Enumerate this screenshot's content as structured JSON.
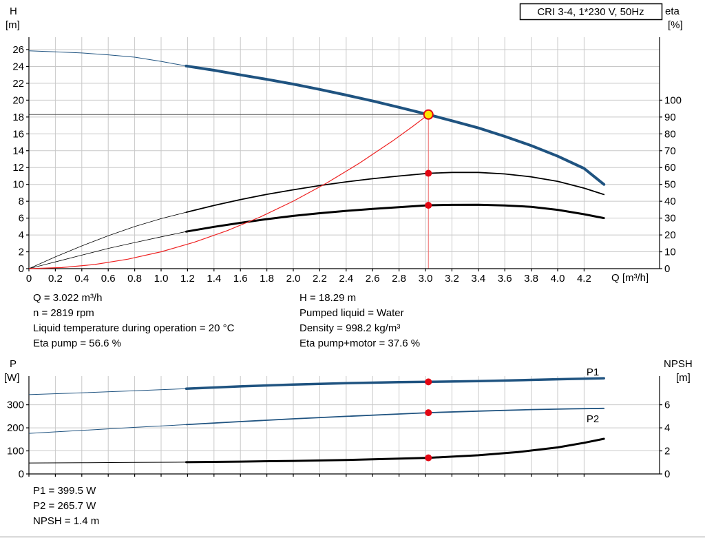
{
  "header": {
    "model": "CRI 3-4, 1*230 V, 50Hz"
  },
  "axis_labels": {
    "h_name": "H",
    "h_unit": "[m]",
    "eta_name": "eta",
    "eta_unit": "[%]",
    "q_label": "Q [m³/h]",
    "p_name": "P",
    "p_unit": "[W]",
    "npsh_name": "NPSH",
    "npsh_unit": "[m]"
  },
  "operating_data": {
    "left_column": [
      "Q = 3.022 m³/h",
      "n = 2819 rpm",
      "Liquid temperature during operation = 20 °C",
      "Eta pump = 56.6 %"
    ],
    "right_column": [
      "H = 18.29 m",
      "Pumped liquid = Water",
      "Density = 998.2 kg/m³",
      "Eta pump+motor = 37.6 %"
    ]
  },
  "power_data": [
    "P1 = 399.5 W",
    "P2 = 265.7 W",
    "NPSH = 1.4 m"
  ],
  "colors": {
    "curve_blue": "#1f5380",
    "curve_black": "#000000",
    "curve_red": "#ee2222",
    "dot_red": "#e30613",
    "duty_fill": "#ffe500",
    "grid": "#c8c8c8",
    "guide_gray": "#555555",
    "guide_red": "#ee6666"
  },
  "chart_data": [
    {
      "type": "line",
      "title": "CRI 3-4, 1*230 V, 50Hz",
      "x_axis": {
        "label": "Q [m³/h]",
        "min": 0,
        "max": 4.77,
        "tick_step": 0.2,
        "tick_max": 4.2,
        "show_labels": true
      },
      "y_left_axis": {
        "name": "H",
        "unit": "[m]",
        "min": 0,
        "tick_step": 2,
        "tick_max": 26
      },
      "y_right_axis": {
        "name": "eta",
        "unit": "[%]",
        "min": 0,
        "tick_step": 10,
        "tick_max": 100
      },
      "duty_point": {
        "q": 3.022,
        "h": 18.29,
        "eta_pump": 56.6,
        "eta_pump_motor": 37.6
      },
      "guides": {
        "horizontal_at": 18.29,
        "vertical_at": 3.022
      },
      "series": [
        {
          "name": "pump-head-curve",
          "axis": "left",
          "color_key": "curve_blue",
          "width": 4,
          "thin_width": 1,
          "thin_until": 1.19,
          "points": [
            [
              0,
              25.85
            ],
            [
              0.2,
              25.74
            ],
            [
              0.4,
              25.6
            ],
            [
              0.6,
              25.38
            ],
            [
              0.8,
              25.1
            ],
            [
              1.0,
              24.6
            ],
            [
              1.19,
              24.05
            ],
            [
              1.4,
              23.55
            ],
            [
              1.6,
              23.0
            ],
            [
              1.8,
              22.47
            ],
            [
              2.0,
              21.9
            ],
            [
              2.2,
              21.27
            ],
            [
              2.4,
              20.6
            ],
            [
              2.6,
              19.9
            ],
            [
              2.8,
              19.15
            ],
            [
              3.0,
              18.37
            ],
            [
              3.022,
              18.29
            ],
            [
              3.2,
              17.55
            ],
            [
              3.4,
              16.7
            ],
            [
              3.6,
              15.7
            ],
            [
              3.8,
              14.6
            ],
            [
              4.0,
              13.35
            ],
            [
              4.2,
              11.9
            ],
            [
              4.35,
              10.0
            ]
          ]
        },
        {
          "name": "eta-pump-curve",
          "axis": "right",
          "color_key": "curve_black",
          "width": 1.8,
          "thin_width": 0.8,
          "thin_until": 1.19,
          "points": [
            [
              0,
              0
            ],
            [
              0.2,
              7
            ],
            [
              0.4,
              13.5
            ],
            [
              0.6,
              19.5
            ],
            [
              0.8,
              25
            ],
            [
              1.0,
              29.7
            ],
            [
              1.19,
              33.5
            ],
            [
              1.4,
              37.5
            ],
            [
              1.6,
              41
            ],
            [
              1.8,
              44.1
            ],
            [
              2.0,
              46.8
            ],
            [
              2.2,
              49.3
            ],
            [
              2.4,
              51.5
            ],
            [
              2.6,
              53.4
            ],
            [
              2.8,
              55
            ],
            [
              3.0,
              56.4
            ],
            [
              3.022,
              56.6
            ],
            [
              3.2,
              57.1
            ],
            [
              3.4,
              57.1
            ],
            [
              3.6,
              56.2
            ],
            [
              3.8,
              54.5
            ],
            [
              4.0,
              51.8
            ],
            [
              4.2,
              47.8
            ],
            [
              4.35,
              44.0
            ]
          ]
        },
        {
          "name": "eta-pump-motor-curve",
          "axis": "right",
          "color_key": "curve_black",
          "width": 3,
          "thin_width": 0.8,
          "thin_until": 1.19,
          "points": [
            [
              0,
              0
            ],
            [
              0.2,
              4
            ],
            [
              0.4,
              8
            ],
            [
              0.6,
              12
            ],
            [
              0.8,
              15.5
            ],
            [
              1.0,
              18.9
            ],
            [
              1.19,
              22
            ],
            [
              1.4,
              24.8
            ],
            [
              1.6,
              27.2
            ],
            [
              1.8,
              29.4
            ],
            [
              2.0,
              31.3
            ],
            [
              2.2,
              32.9
            ],
            [
              2.4,
              34.3
            ],
            [
              2.6,
              35.5
            ],
            [
              2.8,
              36.5
            ],
            [
              3.0,
              37.5
            ],
            [
              3.022,
              37.6
            ],
            [
              3.2,
              37.85
            ],
            [
              3.4,
              37.9
            ],
            [
              3.6,
              37.5
            ],
            [
              3.8,
              36.7
            ],
            [
              4.0,
              34.9
            ],
            [
              4.2,
              32.3
            ],
            [
              4.35,
              30.0
            ]
          ]
        },
        {
          "name": "system-curve",
          "axis": "left",
          "color_key": "curve_red",
          "width": 1.2,
          "points": [
            [
              0,
              0
            ],
            [
              0.25,
              0.13
            ],
            [
              0.5,
              0.5
            ],
            [
              0.75,
              1.13
            ],
            [
              1.0,
              2.0
            ],
            [
              1.25,
              3.13
            ],
            [
              1.5,
              4.51
            ],
            [
              1.75,
              6.13
            ],
            [
              2.0,
              8.01
            ],
            [
              2.25,
              10.14
            ],
            [
              2.5,
              12.52
            ],
            [
              2.75,
              15.14
            ],
            [
              2.9,
              16.84
            ],
            [
              3.022,
              18.29
            ]
          ]
        }
      ],
      "markers": [
        {
          "name": "duty-point-marker",
          "q": 3.022,
          "value": 18.29,
          "axis": "left",
          "style": "duty"
        },
        {
          "name": "eta-pump-marker",
          "q": 3.022,
          "value": 56.6,
          "axis": "right",
          "style": "dot"
        },
        {
          "name": "eta-pump-motor-marker",
          "q": 3.022,
          "value": 37.6,
          "axis": "right",
          "style": "dot"
        }
      ]
    },
    {
      "type": "line",
      "x_axis": {
        "min": 0,
        "max": 4.77,
        "tick_step": 0.2,
        "tick_max": 4.2,
        "show_labels": false
      },
      "y_left_axis": {
        "name": "P",
        "unit": "[W]",
        "min": 0,
        "tick_step": 100,
        "tick_max": 300
      },
      "y_right_axis": {
        "name": "NPSH",
        "unit": "[m]",
        "min": 0,
        "tick_step": 2,
        "tick_max": 6
      },
      "series": [
        {
          "name": "p1-power-curve",
          "label": "P1",
          "axis": "left",
          "color_key": "curve_blue",
          "width": 3.5,
          "thin_width": 1,
          "thin_until": 1.19,
          "points": [
            [
              0,
              344
            ],
            [
              0.4,
              352
            ],
            [
              0.8,
              361
            ],
            [
              1.19,
              370
            ],
            [
              1.6,
              380
            ],
            [
              2.0,
              388
            ],
            [
              2.4,
              394
            ],
            [
              2.8,
              398.2
            ],
            [
              3.022,
              399.5
            ],
            [
              3.4,
              403
            ],
            [
              3.8,
              408
            ],
            [
              4.1,
              412
            ],
            [
              4.35,
              415
            ]
          ]
        },
        {
          "name": "p2-power-curve",
          "label": "P2",
          "axis": "left",
          "color_key": "curve_blue",
          "width": 1.8,
          "thin_width": 1,
          "thin_until": 1.19,
          "points": [
            [
              0,
              176
            ],
            [
              0.4,
              189
            ],
            [
              0.8,
              202
            ],
            [
              1.19,
              214
            ],
            [
              1.6,
              227
            ],
            [
              2.0,
              239
            ],
            [
              2.4,
              250
            ],
            [
              2.8,
              260
            ],
            [
              3.022,
              265.7
            ],
            [
              3.4,
              272.5
            ],
            [
              3.8,
              279
            ],
            [
              4.1,
              282.5
            ],
            [
              4.35,
              284.5
            ]
          ]
        },
        {
          "name": "npsh-curve",
          "axis": "right",
          "color_key": "curve_black",
          "width": 3,
          "thin_width": 1,
          "thin_until": 1.19,
          "points": [
            [
              0,
              0.95
            ],
            [
              0.4,
              0.97
            ],
            [
              0.8,
              1.0
            ],
            [
              1.19,
              1.02
            ],
            [
              1.6,
              1.07
            ],
            [
              2.0,
              1.13
            ],
            [
              2.4,
              1.21
            ],
            [
              2.8,
              1.33
            ],
            [
              3.022,
              1.4
            ],
            [
              3.4,
              1.62
            ],
            [
              3.7,
              1.9
            ],
            [
              4.0,
              2.3
            ],
            [
              4.2,
              2.7
            ],
            [
              4.35,
              3.05
            ]
          ]
        }
      ],
      "markers": [
        {
          "name": "p1-marker",
          "q": 3.022,
          "value": 399.5,
          "axis": "left",
          "style": "dot"
        },
        {
          "name": "p2-marker",
          "q": 3.022,
          "value": 265.7,
          "axis": "left",
          "style": "dot"
        },
        {
          "name": "npsh-marker",
          "q": 3.022,
          "value": 1.4,
          "axis": "right",
          "style": "dot"
        }
      ]
    }
  ]
}
